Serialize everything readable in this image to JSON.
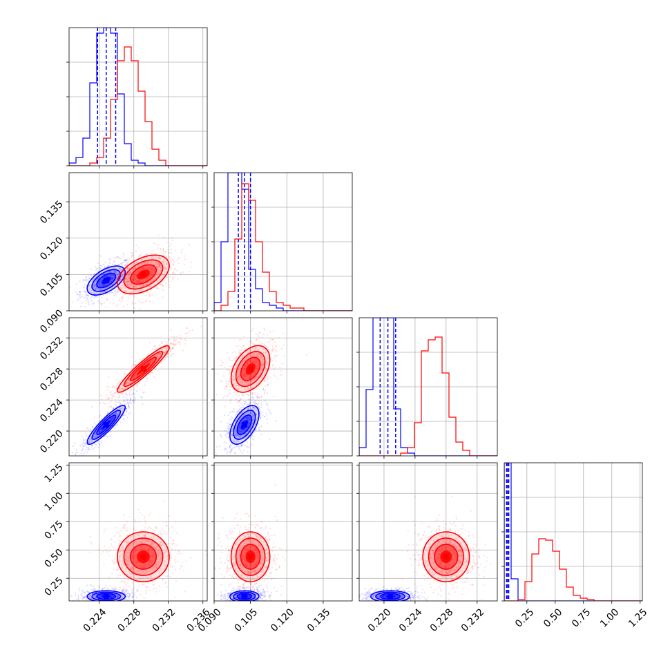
{
  "chart_data": {
    "type": "corner",
    "parameters": [
      {
        "index": 0,
        "range": [
          0.2205,
          0.2365
        ],
        "ticks": [
          0.224,
          0.228,
          0.232,
          0.236
        ],
        "tick_labels": [
          "0.224",
          "0.228",
          "0.232",
          "0.236"
        ]
      },
      {
        "index": 1,
        "range": [
          0.09,
          0.147
        ],
        "ticks": [
          0.09,
          0.105,
          0.12,
          0.135
        ],
        "tick_labels": [
          "0.090",
          "0.105",
          "0.120",
          "0.135"
        ]
      },
      {
        "index": 2,
        "range": [
          0.2168,
          0.2346
        ],
        "ticks": [
          0.22,
          0.224,
          0.228,
          0.232
        ],
        "tick_labels": [
          "0.220",
          "0.224",
          "0.228",
          "0.232"
        ]
      },
      {
        "index": 3,
        "range": [
          0.05,
          1.27
        ],
        "ticks": [
          0.25,
          0.5,
          0.75,
          1.0,
          1.25
        ],
        "tick_labels": [
          "0.25",
          "0.50",
          "0.75",
          "1.00",
          "1.25"
        ]
      }
    ],
    "series": [
      {
        "color": "#0000ff",
        "hist": [
          {
            "start": 0.2205,
            "width": 0.0008,
            "counts": [
              1,
              3,
              10,
              30,
              48,
              50,
              48,
              26,
              8,
              2,
              1,
              0,
              0,
              0,
              0,
              0,
              0,
              0,
              0,
              0
            ]
          },
          {
            "start": 0.09,
            "width": 0.00285,
            "counts": [
              3,
              25,
              50,
              50,
              44,
              15,
              8,
              3,
              2,
              1,
              0,
              0,
              0,
              0,
              0,
              0,
              0,
              0,
              0,
              0
            ]
          },
          {
            "start": 0.2168,
            "width": 0.00089,
            "counts": [
              3,
              24,
              50,
              50,
              50,
              17,
              3,
              1,
              0,
              0,
              0,
              0,
              0,
              0,
              0,
              0,
              0,
              0,
              0,
              0
            ]
          },
          {
            "start": 0.05,
            "width": 0.061,
            "counts": [
              100,
              16,
              0,
              0,
              0,
              0,
              0,
              0,
              0,
              0,
              0,
              0,
              0,
              0,
              0,
              0,
              0,
              0,
              0,
              0
            ]
          }
        ],
        "quantiles": [
          [
            0.2238,
            0.2248,
            0.2259
          ],
          [
            0.1,
            0.1025,
            0.105
          ],
          [
            0.2195,
            0.2205,
            0.2215
          ],
          [
            0.07,
            0.08,
            0.09
          ]
        ],
        "mean": [
          0.2248,
          0.1025,
          0.2208,
          0.09
        ],
        "sigma": [
          0.0011,
          0.003,
          0.00125,
          0.025
        ],
        "corr": [
          [
            1,
            0.55,
            0.9,
            0
          ],
          [
            0.55,
            1,
            0.55,
            0.05
          ],
          [
            0.9,
            0.55,
            1,
            0
          ],
          [
            0,
            0.05,
            0,
            1
          ]
        ]
      },
      {
        "color": "#ff0000",
        "hist": [
          {
            "start": 0.2205,
            "width": 0.0008,
            "counts": [
              0,
              0,
              0,
              1,
              3,
              10,
              24,
              38,
              43,
              38,
              27,
              16,
              6,
              2,
              0,
              0,
              0,
              0,
              0,
              0
            ]
          },
          {
            "start": 0.09,
            "width": 0.00285,
            "counts": [
              0,
              2,
              7,
              26,
              46,
              40,
              25,
              14,
              7,
              3,
              2,
              1,
              1,
              0,
              0,
              0,
              0,
              0,
              0,
              0
            ]
          },
          {
            "start": 0.2168,
            "width": 0.00089,
            "counts": [
              0,
              0,
              0,
              0,
              0,
              0,
              1,
              3,
              12,
              38,
              42,
              43,
              30,
              14,
              5,
              2,
              0,
              0,
              0,
              0
            ]
          },
          {
            "start": 0.05,
            "width": 0.061,
            "counts": [
              0,
              0,
              1,
              14,
              34,
              45,
              44,
              36,
              23,
              10,
              4,
              2,
              1,
              0,
              0,
              0,
              0,
              0,
              0,
              0
            ]
          }
        ],
        "mean": [
          0.2291,
          0.105,
          0.228,
          0.44
        ],
        "sigma": [
          0.0015,
          0.004,
          0.0015,
          0.11
        ],
        "corr": [
          [
            1,
            0.45,
            0.93,
            0
          ],
          [
            0.45,
            1,
            0.4,
            0
          ],
          [
            0.93,
            0.4,
            1,
            0
          ],
          [
            0,
            0,
            0,
            1
          ]
        ]
      }
    ],
    "contour_levels": [
      0.5,
      1.0,
      1.5,
      2.0
    ],
    "grid": true,
    "layout": "lower-triangle 4x4"
  }
}
